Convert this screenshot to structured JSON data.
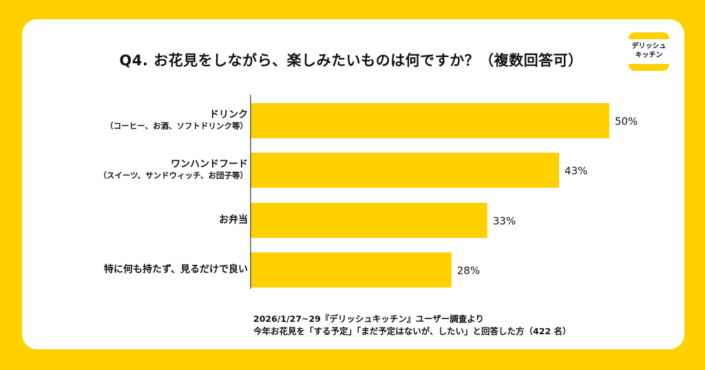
{
  "title": "Q4. お花見をしながら、楽しみたいものは何ですか？（複数回答可）",
  "logo": {
    "text_line1": "デリッシュ",
    "text_line2": "キッチン"
  },
  "chart_data": {
    "type": "bar",
    "orientation": "horizontal",
    "title": "Q4. お花見をしながら、楽しみたいものは何ですか？（複数回答可）",
    "categories": [
      {
        "main": "ドリンク",
        "sub": "（コーヒー、お酒、ソフトドリンク等）"
      },
      {
        "main": "ワンハンドフード",
        "sub": "（スイーツ、サンドウィッチ、お団子等）"
      },
      {
        "main": "お弁当",
        "sub": ""
      },
      {
        "main": "特に何も持たず、見るだけで良い",
        "sub": ""
      }
    ],
    "values": [
      50,
      43,
      33,
      28
    ],
    "value_labels": [
      "50%",
      "43%",
      "33%",
      "28%"
    ],
    "unit": "%",
    "xlim": [
      0,
      50
    ],
    "grid": false,
    "bar_color": "#FFD100"
  },
  "footnote": {
    "line1": "2026/1/27~29『デリッシュキッチン』ユーザー調査より",
    "line2": "今年お花見を「する予定」「まだ予定はないが、したい」と回答した方（422 名）"
  },
  "colors": {
    "background": "#FFD100",
    "card": "#FFFFFF",
    "bar": "#FFD100",
    "text": "#111111"
  }
}
